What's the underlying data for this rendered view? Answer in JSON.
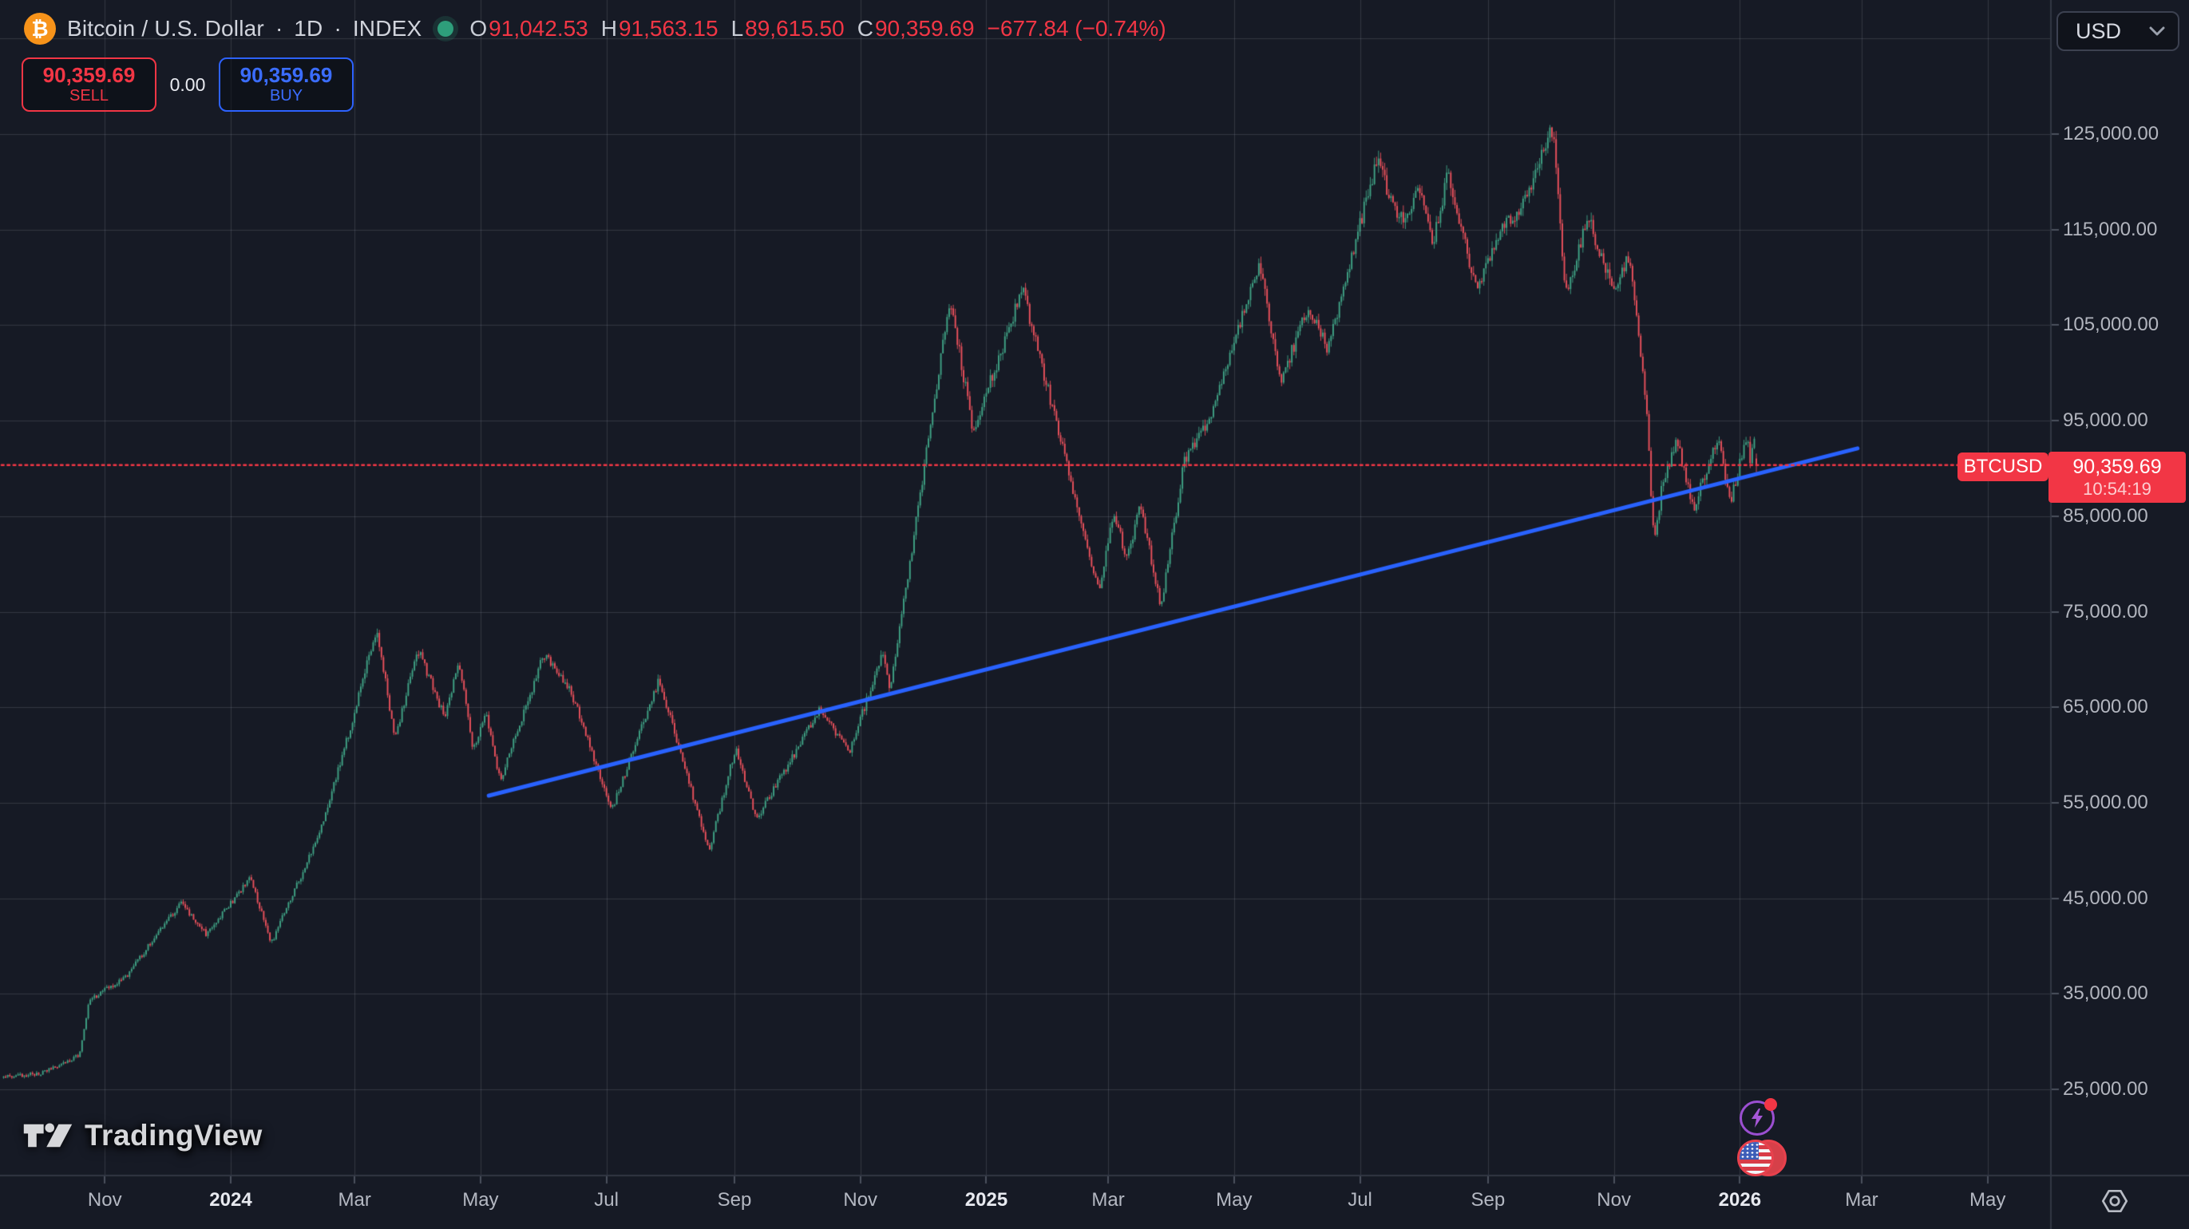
{
  "header": {
    "symbol_title": "Bitcoin / U.S. Dollar",
    "interval": "1D",
    "exchange": "INDEX",
    "separator": "·",
    "bitcoin_glyph": "₿",
    "legend": {
      "open_label": "O",
      "open": "91,042.53",
      "high_label": "H",
      "high": "91,563.15",
      "low_label": "L",
      "low": "89,615.50",
      "close_label": "C",
      "close": "90,359.69",
      "change": "−677.84 (−0.74%)"
    }
  },
  "order_panel": {
    "sell_price": "90,359.69",
    "sell_label": "SELL",
    "spread": "0.00",
    "buy_price": "90,359.69",
    "buy_label": "BUY"
  },
  "currency_selector": {
    "value": "USD"
  },
  "price_label": {
    "symbol": "BTCUSD",
    "price": "90,359.69",
    "countdown": "10:54:19"
  },
  "watermark": {
    "text": "TradingView"
  },
  "colors": {
    "background": "#161a25",
    "grid": "rgba(151,158,173,0.22)",
    "separator": "#313743",
    "tick_dash": "#4b515e",
    "up": "#3fa184",
    "down": "#e8505b",
    "trendline": "#2962ff",
    "price_line": "#f23645",
    "bitcoin_orange": "#f7931a",
    "status_green": "#2e9e7b"
  },
  "chart_data": {
    "type": "candlestick",
    "symbol": "BTCUSD",
    "title": "Bitcoin / U.S. Dollar",
    "interval": "1D",
    "exchange": "INDEX",
    "ohlc": {
      "open": 91042.53,
      "high": 91563.15,
      "low": 89615.5,
      "close": 90359.69,
      "change": -677.84,
      "change_pct": -0.74
    },
    "price_line": 90359.69,
    "countdown": "10:54:19",
    "grid": true,
    "legend_position": "top-left",
    "y_axis": {
      "side": "right",
      "min_visible": 23000,
      "max_visible": 132000,
      "ticks": [
        125000,
        115000,
        105000,
        95000,
        85000,
        75000,
        65000,
        55000,
        45000,
        35000,
        25000
      ],
      "gridline_step": 10000
    },
    "x_axis": {
      "side": "bottom",
      "start": "2023-09-13",
      "end": "2026-01-09",
      "ticks": [
        {
          "label": "Nov",
          "date": "2023-11-01",
          "major": false
        },
        {
          "label": "2024",
          "date": "2024-01-01",
          "major": true
        },
        {
          "label": "Mar",
          "date": "2024-03-01",
          "major": false
        },
        {
          "label": "May",
          "date": "2024-05-01",
          "major": false
        },
        {
          "label": "Jul",
          "date": "2024-07-01",
          "major": false
        },
        {
          "label": "Sep",
          "date": "2024-09-01",
          "major": false
        },
        {
          "label": "Nov",
          "date": "2024-11-01",
          "major": false
        },
        {
          "label": "2025",
          "date": "2025-01-01",
          "major": true
        },
        {
          "label": "Mar",
          "date": "2025-03-01",
          "major": false
        },
        {
          "label": "May",
          "date": "2025-05-01",
          "major": false
        },
        {
          "label": "Jul",
          "date": "2025-07-01",
          "major": false
        },
        {
          "label": "Sep",
          "date": "2025-09-01",
          "major": false
        },
        {
          "label": "Nov",
          "date": "2025-11-01",
          "major": false
        },
        {
          "label": "2026",
          "date": "2026-01-01",
          "major": true
        },
        {
          "label": "Mar",
          "date": "2026-03-01",
          "major": false
        },
        {
          "label": "May",
          "date": "2026-05-01",
          "major": false
        }
      ]
    },
    "trendline": {
      "type": "trend_line",
      "color": "#2962ff",
      "width": 5,
      "from": {
        "date": "2024-05-05",
        "price": 55750
      },
      "to": {
        "date": "2026-02-27",
        "price": 92100
      }
    },
    "price_path": [
      [
        "2023-09-13",
        26300
      ],
      [
        "2023-10-02",
        26700
      ],
      [
        "2023-10-20",
        28600
      ],
      [
        "2023-10-25",
        34300
      ],
      [
        "2023-11-12",
        36900
      ],
      [
        "2023-12-08",
        44500
      ],
      [
        "2023-12-21",
        41200
      ],
      [
        "2024-01-11",
        47200
      ],
      [
        "2024-01-21",
        40300
      ],
      [
        "2024-02-13",
        51500
      ],
      [
        "2024-02-28",
        62500
      ],
      [
        "2024-03-12",
        73200
      ],
      [
        "2024-03-21",
        61800
      ],
      [
        "2024-04-01",
        71200
      ],
      [
        "2024-04-14",
        64000
      ],
      [
        "2024-04-21",
        70000
      ],
      [
        "2024-04-28",
        60500
      ],
      [
        "2024-05-04",
        64500
      ],
      [
        "2024-05-11",
        57200
      ],
      [
        "2024-06-01",
        70500
      ],
      [
        "2024-06-14",
        66800
      ],
      [
        "2024-07-04",
        54300
      ],
      [
        "2024-07-27",
        68000
      ],
      [
        "2024-08-20",
        49900
      ],
      [
        "2024-09-02",
        60800
      ],
      [
        "2024-09-12",
        53200
      ],
      [
        "2024-10-13",
        64800
      ],
      [
        "2024-10-27",
        60300
      ],
      [
        "2024-11-12",
        70500
      ],
      [
        "2024-11-16",
        66800
      ],
      [
        "2024-12-15",
        108000
      ],
      [
        "2024-12-26",
        93800
      ],
      [
        "2025-01-19",
        108800
      ],
      [
        "2025-02-05",
        94200
      ],
      [
        "2025-02-25",
        77200
      ],
      [
        "2025-03-04",
        85000
      ],
      [
        "2025-03-11",
        80600
      ],
      [
        "2025-03-17",
        86600
      ],
      [
        "2025-03-27",
        75200
      ],
      [
        "2025-04-07",
        90500
      ],
      [
        "2025-04-20",
        95200
      ],
      [
        "2025-05-14",
        111600
      ],
      [
        "2025-05-24",
        99200
      ],
      [
        "2025-06-06",
        106600
      ],
      [
        "2025-06-16",
        102600
      ],
      [
        "2025-07-10",
        122600
      ],
      [
        "2025-07-20",
        115600
      ],
      [
        "2025-07-31",
        119200
      ],
      [
        "2025-08-06",
        113600
      ],
      [
        "2025-08-13",
        121000
      ],
      [
        "2025-08-27",
        108600
      ],
      [
        "2025-09-09",
        115600
      ],
      [
        "2025-09-19",
        117600
      ],
      [
        "2025-10-03",
        125800
      ],
      [
        "2025-10-09",
        108000
      ],
      [
        "2025-10-20",
        116200
      ],
      [
        "2025-11-02",
        108200
      ],
      [
        "2025-11-09",
        112600
      ],
      [
        "2025-11-17",
        97000
      ],
      [
        "2025-11-21",
        81800
      ],
      [
        "2025-11-25",
        88500
      ],
      [
        "2025-12-02",
        92800
      ],
      [
        "2025-12-10",
        85800
      ],
      [
        "2025-12-17",
        90400
      ],
      [
        "2025-12-22",
        93400
      ],
      [
        "2025-12-28",
        86400
      ],
      [
        "2026-01-02",
        91000
      ],
      [
        "2026-01-05",
        93800
      ],
      [
        "2026-01-07",
        89900
      ],
      [
        "2026-01-08",
        94600
      ],
      [
        "2026-01-09",
        90359.69
      ]
    ]
  }
}
